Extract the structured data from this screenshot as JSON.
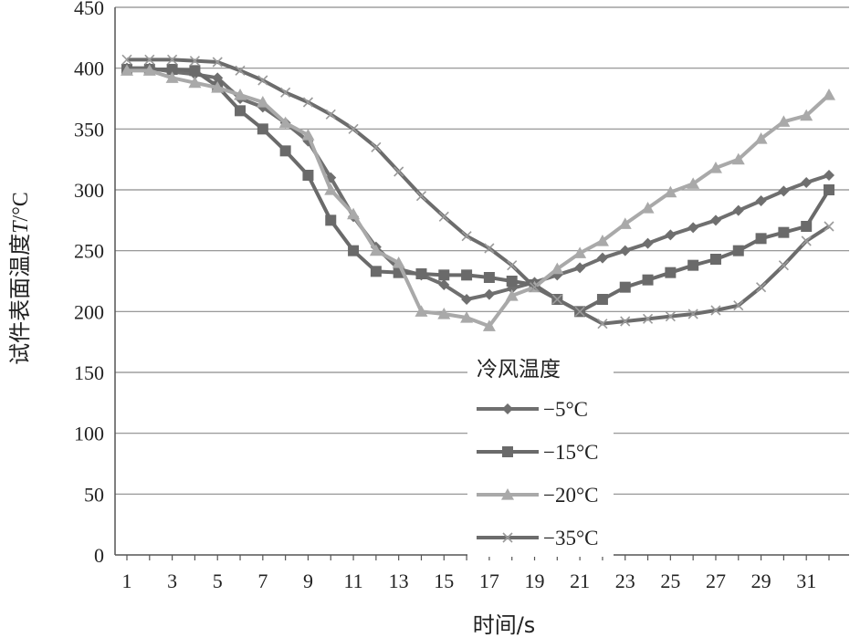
{
  "chart_data": {
    "type": "line",
    "title": "",
    "xlabel": "时间/s",
    "ylabel_parts": [
      "试件表面温度",
      "T",
      "/°C"
    ],
    "xlim": [
      1,
      32
    ],
    "ylim": [
      0,
      450
    ],
    "y_ticks": [
      0,
      50,
      100,
      150,
      200,
      250,
      300,
      350,
      400,
      450
    ],
    "x_tick_labels": [
      "1",
      "3",
      "5",
      "7",
      "9",
      "11",
      "13",
      "15",
      "17",
      "19",
      "21",
      "23",
      "25",
      "27",
      "29",
      "31"
    ],
    "x": [
      1,
      2,
      3,
      4,
      5,
      6,
      7,
      8,
      9,
      10,
      11,
      12,
      13,
      14,
      15,
      16,
      17,
      18,
      19,
      20,
      21,
      22,
      23,
      24,
      25,
      26,
      27,
      28,
      29,
      30,
      31,
      32
    ],
    "grid": "horizontal",
    "legend": {
      "title": "冷风温度",
      "placement": "center"
    },
    "series": [
      {
        "name": "−5°C",
        "marker": "diamond",
        "color": "#6f6f6f",
        "values": [
          400,
          400,
          397,
          395,
          392,
          375,
          368,
          355,
          340,
          310,
          278,
          253,
          235,
          230,
          222,
          210,
          214,
          219,
          224,
          230,
          236,
          244,
          250,
          256,
          263,
          269,
          275,
          283,
          291,
          299,
          306,
          312
        ]
      },
      {
        "name": "−15°C",
        "marker": "square",
        "color": "#6a6a6a",
        "values": [
          399,
          399,
          399,
          398,
          385,
          365,
          350,
          332,
          312,
          275,
          250,
          233,
          232,
          231,
          230,
          230,
          228,
          225,
          222,
          210,
          200,
          210,
          220,
          226,
          232,
          238,
          243,
          250,
          260,
          265,
          270,
          300
        ]
      },
      {
        "name": "−20°C",
        "marker": "triangle",
        "color": "#a9a9a9",
        "values": [
          398,
          398,
          392,
          388,
          384,
          378,
          372,
          355,
          345,
          300,
          280,
          250,
          240,
          200,
          198,
          195,
          188,
          213,
          220,
          235,
          248,
          258,
          272,
          285,
          298,
          305,
          318,
          325,
          342,
          356,
          361,
          378
        ]
      },
      {
        "name": "−35°C",
        "marker": "x",
        "color": "#6c6c6c",
        "values": [
          407,
          407,
          407,
          406,
          405,
          398,
          390,
          380,
          372,
          362,
          350,
          335,
          315,
          295,
          278,
          262,
          252,
          238,
          220,
          210,
          200,
          190,
          192,
          194,
          196,
          198,
          201,
          205,
          220,
          238,
          258,
          270
        ]
      }
    ]
  }
}
